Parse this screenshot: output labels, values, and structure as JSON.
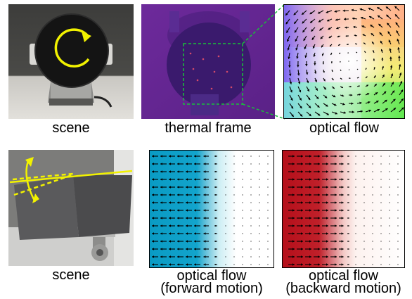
{
  "captions": {
    "scene_top": "scene",
    "thermal_frame": "thermal frame",
    "optical_flow_top": "optical flow",
    "scene_bottom": "scene",
    "optical_flow_forward": "optical flow",
    "forward_motion": "(forward motion)",
    "optical_flow_backward": "optical flow",
    "backward_motion": "(backward motion)"
  },
  "colors": {
    "annotation_yellow": "#f2f200",
    "zoom_box_green": "#19c13a",
    "forward_flow_blue": "#0a9bc4",
    "backward_flow_red": "#b50f1a"
  }
}
